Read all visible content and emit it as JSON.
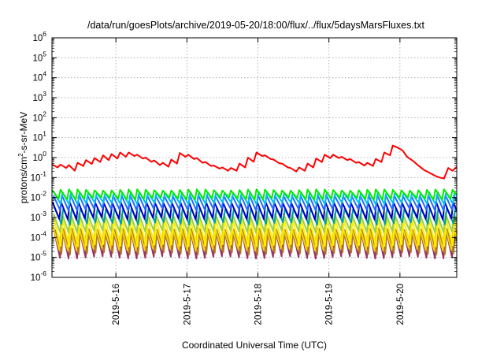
{
  "chart_data": {
    "type": "line",
    "title": "/data/run/goesPlots/archive/2019-05-20/18:00/flux/../flux/5daysMarsFluxes.txt",
    "xlabel": "Coordinated Universal Time (UTC)",
    "ylabel_parts": [
      "protons/cm",
      "2",
      "-s-sr-MeV"
    ],
    "y_scale": "log",
    "ylim_exp": [
      -6,
      6
    ],
    "y_tick_exponents": [
      -6,
      -5,
      -4,
      -3,
      -2,
      -1,
      0,
      1,
      2,
      3,
      4,
      5,
      6
    ],
    "y_tick_base": "10",
    "x_range_days": [
      15.1,
      20.8
    ],
    "x_ticks": [
      {
        "label": "2019-5-16",
        "day": 16
      },
      {
        "label": "2019-5-17",
        "day": 17
      },
      {
        "label": "2019-5-18",
        "day": 18
      },
      {
        "label": "2019-5-19",
        "day": 19
      },
      {
        "label": "2019-5-20",
        "day": 20
      }
    ],
    "grid": true,
    "legend": "none",
    "series": [
      {
        "color": "#ff0000",
        "width": 2,
        "points": [
          [
            15.1,
            0.45
          ],
          [
            15.18,
            0.32
          ],
          [
            15.22,
            0.45
          ],
          [
            15.3,
            0.3
          ],
          [
            15.34,
            0.42
          ],
          [
            15.42,
            0.22
          ],
          [
            15.46,
            0.55
          ],
          [
            15.54,
            0.38
          ],
          [
            15.58,
            0.75
          ],
          [
            15.66,
            0.48
          ],
          [
            15.7,
            0.95
          ],
          [
            15.78,
            0.6
          ],
          [
            15.82,
            1.3
          ],
          [
            15.9,
            0.75
          ],
          [
            15.94,
            1.5
          ],
          [
            16.02,
            0.9
          ],
          [
            16.06,
            1.8
          ],
          [
            16.14,
            1.1
          ],
          [
            16.18,
            1.8
          ],
          [
            16.26,
            1.2
          ],
          [
            16.3,
            1.4
          ],
          [
            16.38,
            0.9
          ],
          [
            16.42,
            1.0
          ],
          [
            16.5,
            0.62
          ],
          [
            16.54,
            0.72
          ],
          [
            16.62,
            0.42
          ],
          [
            16.66,
            0.55
          ],
          [
            16.74,
            0.35
          ],
          [
            16.78,
            0.8
          ],
          [
            16.86,
            0.5
          ],
          [
            16.9,
            1.7
          ],
          [
            16.98,
            1.1
          ],
          [
            17.02,
            1.4
          ],
          [
            17.1,
            0.85
          ],
          [
            17.14,
            0.95
          ],
          [
            17.22,
            0.55
          ],
          [
            17.26,
            0.6
          ],
          [
            17.34,
            0.38
          ],
          [
            17.38,
            0.4
          ],
          [
            17.46,
            0.28
          ],
          [
            17.5,
            0.32
          ],
          [
            17.58,
            0.22
          ],
          [
            17.62,
            0.3
          ],
          [
            17.7,
            0.22
          ],
          [
            17.74,
            0.5
          ],
          [
            17.82,
            0.32
          ],
          [
            17.86,
            1.0
          ],
          [
            17.94,
            0.62
          ],
          [
            17.98,
            1.8
          ],
          [
            18.06,
            1.2
          ],
          [
            18.1,
            1.3
          ],
          [
            18.18,
            0.85
          ],
          [
            18.22,
            0.8
          ],
          [
            18.3,
            0.52
          ],
          [
            18.34,
            0.5
          ],
          [
            18.42,
            0.32
          ],
          [
            18.46,
            0.3
          ],
          [
            18.54,
            0.2
          ],
          [
            18.58,
            0.32
          ],
          [
            18.66,
            0.22
          ],
          [
            18.7,
            0.5
          ],
          [
            18.78,
            0.32
          ],
          [
            18.82,
            0.9
          ],
          [
            18.9,
            0.6
          ],
          [
            18.94,
            1.4
          ],
          [
            19.02,
            0.95
          ],
          [
            19.06,
            1.4
          ],
          [
            19.14,
            0.95
          ],
          [
            19.18,
            1.1
          ],
          [
            19.26,
            0.75
          ],
          [
            19.3,
            0.85
          ],
          [
            19.38,
            0.55
          ],
          [
            19.42,
            0.6
          ],
          [
            19.5,
            0.4
          ],
          [
            19.54,
            0.55
          ],
          [
            19.62,
            0.38
          ],
          [
            19.66,
            0.85
          ],
          [
            19.74,
            0.6
          ],
          [
            19.78,
            1.8
          ],
          [
            19.86,
            1.3
          ],
          [
            19.9,
            4.0
          ],
          [
            19.98,
            3.0
          ],
          [
            20.04,
            2.2
          ],
          [
            20.1,
            1.1
          ],
          [
            20.18,
            0.7
          ],
          [
            20.26,
            0.4
          ],
          [
            20.34,
            0.24
          ],
          [
            20.42,
            0.17
          ],
          [
            20.5,
            0.12
          ],
          [
            20.56,
            0.1
          ],
          [
            20.62,
            0.09
          ],
          [
            20.68,
            0.3
          ],
          [
            20.74,
            0.22
          ],
          [
            20.8,
            0.34
          ]
        ]
      },
      {
        "color": "#00ee00",
        "width": 2,
        "sawtooth": {
          "start": 15.1,
          "period": 0.12,
          "peak_exp": -1.62,
          "trough_exp": -2.05
        }
      },
      {
        "color": "#00bbee",
        "width": 2,
        "sawtooth": {
          "start": 15.13,
          "period": 0.12,
          "peak_exp": -1.75,
          "trough_exp": -2.3
        }
      },
      {
        "color": "#1e6fff",
        "width": 2,
        "sawtooth": {
          "start": 15.12,
          "period": 0.12,
          "peak_exp": -1.9,
          "trough_exp": -2.6
        }
      },
      {
        "color": "#0000c8",
        "width": 2,
        "sawtooth": {
          "start": 15.11,
          "period": 0.12,
          "peak_exp": -2.25,
          "trough_exp": -3.05
        }
      },
      {
        "color": "#00a0a0",
        "width": 2,
        "sawtooth": {
          "start": 15.14,
          "period": 0.12,
          "peak_exp": -2.55,
          "trough_exp": -3.3
        }
      },
      {
        "color": "#9cd04a",
        "width": 2,
        "sawtooth": {
          "start": 15.12,
          "period": 0.12,
          "peak_exp": -2.8,
          "trough_exp": -3.7
        }
      },
      {
        "color": "#ffee00",
        "width": 2,
        "sawtooth": {
          "start": 15.13,
          "period": 0.12,
          "peak_exp": -3.1,
          "trough_exp": -4.4
        }
      },
      {
        "color": "#f2d400",
        "width": 2,
        "sawtooth": {
          "start": 15.11,
          "period": 0.12,
          "peak_exp": -3.4,
          "trough_exp": -4.6
        }
      },
      {
        "color": "#b37a2a",
        "width": 2,
        "sawtooth": {
          "start": 15.14,
          "period": 0.12,
          "peak_exp": -3.6,
          "trough_exp": -4.8
        }
      },
      {
        "color": "#993366",
        "width": 2,
        "sawtooth": {
          "start": 15.12,
          "period": 0.12,
          "peak_exp": -3.5,
          "trough_exp": -5.0
        }
      }
    ]
  }
}
